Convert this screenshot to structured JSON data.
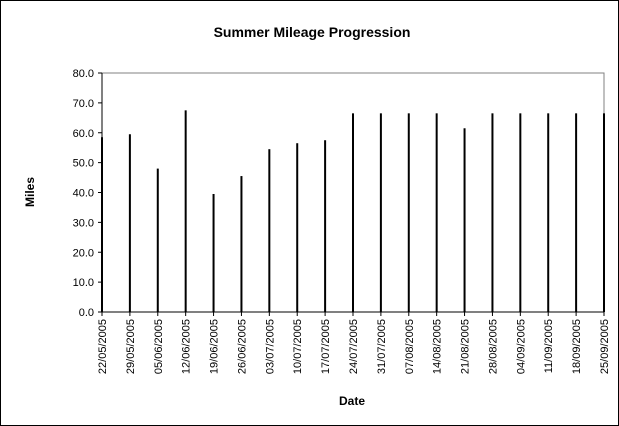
{
  "chart_data": {
    "type": "bar",
    "title": "Summer Mileage Progression",
    "xlabel": "Date",
    "ylabel": "Miles",
    "ylim": [
      0,
      80
    ],
    "yticks": [
      "0.0",
      "10.0",
      "20.0",
      "30.0",
      "40.0",
      "50.0",
      "60.0",
      "70.0",
      "80.0"
    ],
    "grid": false,
    "legend": "none",
    "bar_color": "#000000",
    "categories": [
      "22/05/2005",
      "29/05/2005",
      "05/06/2005",
      "12/06/2005",
      "19/06/2005",
      "26/06/2005",
      "03/07/2005",
      "10/07/2005",
      "17/07/2005",
      "24/07/2005",
      "31/07/2005",
      "07/08/2005",
      "14/08/2005",
      "21/08/2005",
      "28/08/2005",
      "04/09/2005",
      "11/09/2005",
      "18/09/2005",
      "25/09/2005"
    ],
    "values": [
      58.5,
      59.5,
      48,
      67.5,
      39.5,
      45.5,
      54.5,
      56.5,
      57.5,
      66.5,
      66.5,
      66.5,
      66.5,
      61.5,
      66.5,
      66.5,
      66.5,
      66.5,
      66.5
    ]
  }
}
